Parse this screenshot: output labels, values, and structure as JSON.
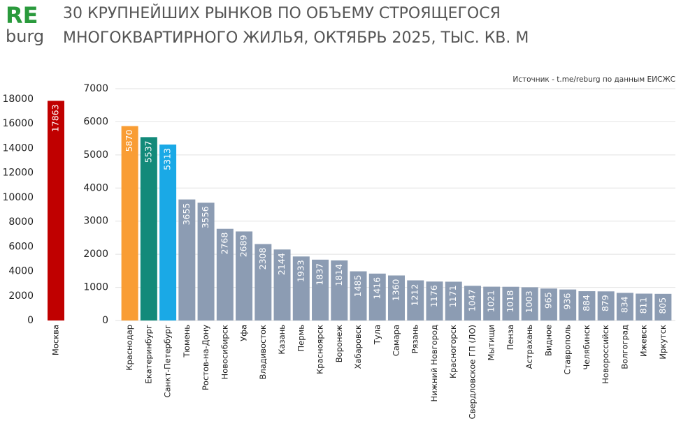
{
  "header": {
    "logo_top": "RE",
    "logo_bottom": "burg",
    "title": [
      "30 КРУПНЕЙШИХ РЫНКОВ ПО ОБЪЕМУ СТРОЯЩЕГОСЯ",
      "МНОГОКВАРТИРНОГО ЖИЛЬЯ, ОКТЯБРЬ 2025, ТЫС. КВ. М"
    ]
  },
  "chart_data": [
    {
      "type": "bar",
      "categories": [
        "Москва"
      ],
      "values": [
        17863
      ],
      "colors": [
        "#c00000"
      ],
      "ylim": [
        0,
        18000
      ],
      "yticks": [
        0,
        2000,
        4000,
        6000,
        8000,
        10000,
        12000,
        14000,
        16000,
        18000
      ],
      "grid": false
    },
    {
      "type": "bar",
      "source": "Источник - t.me/reburg по данным ЕИСЖС",
      "categories": [
        "Краснодар",
        "Екатеринбург",
        "Санкт-Петербург",
        "Тюмень",
        "Ростов-на-Дону",
        "Новосибирск",
        "Уфа",
        "Владивосток",
        "Казань",
        "Пермь",
        "Красноярск",
        "Воронеж",
        "Хабаровск",
        "Тула",
        "Самара",
        "Рязань",
        "Нижний Новгород",
        "Красногорск",
        "Свердловское ГП (ЛО)",
        "Мытищи",
        "Пенза",
        "Астрахань",
        "Видное",
        "Ставрополь",
        "Челябинск",
        "Новороссийск",
        "Волгоград",
        "Ижевск",
        "Иркутск"
      ],
      "values": [
        5870,
        5537,
        5313,
        3655,
        3556,
        2768,
        2689,
        2308,
        2144,
        1933,
        1837,
        1814,
        1485,
        1416,
        1360,
        1212,
        1176,
        1171,
        1047,
        1021,
        1018,
        1003,
        965,
        936,
        884,
        879,
        834,
        811,
        805
      ],
      "colors": [
        "#f99d34",
        "#138a7a",
        "#1aa9e6",
        "#8c9cb3",
        "#8c9cb3",
        "#8c9cb3",
        "#8c9cb3",
        "#8c9cb3",
        "#8c9cb3",
        "#8c9cb3",
        "#8c9cb3",
        "#8c9cb3",
        "#8c9cb3",
        "#8c9cb3",
        "#8c9cb3",
        "#8c9cb3",
        "#8c9cb3",
        "#8c9cb3",
        "#8c9cb3",
        "#8c9cb3",
        "#8c9cb3",
        "#8c9cb3",
        "#8c9cb3",
        "#8c9cb3",
        "#8c9cb3",
        "#8c9cb3",
        "#8c9cb3",
        "#8c9cb3",
        "#8c9cb3"
      ],
      "ylim": [
        0,
        7000
      ],
      "yticks": [
        0,
        1000,
        2000,
        3000,
        4000,
        5000,
        6000,
        7000
      ],
      "grid": true
    }
  ]
}
